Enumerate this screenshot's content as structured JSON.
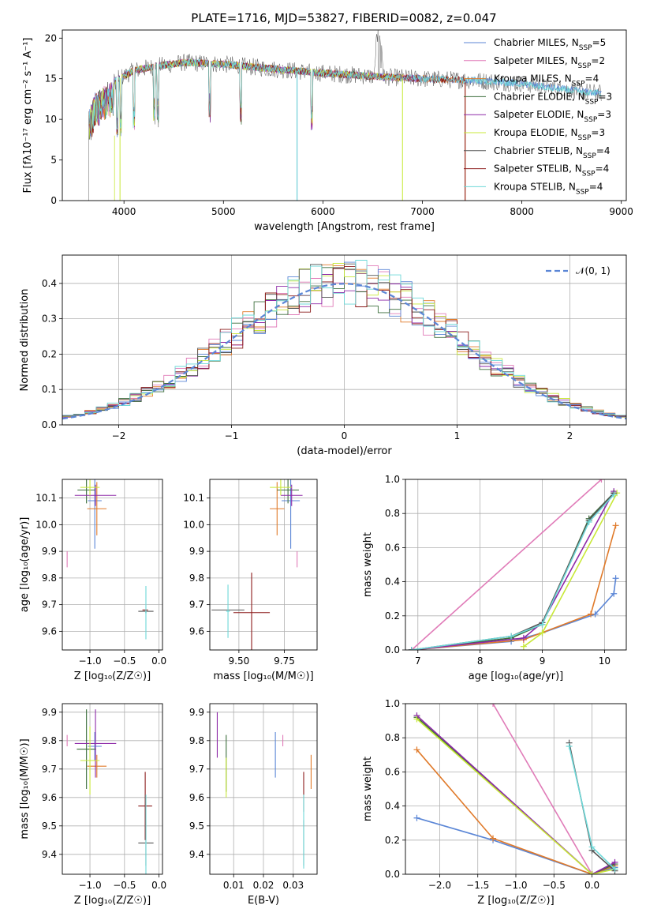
{
  "colors": {
    "Chabrier MILES": "#5b86d6",
    "Salpeter MILES": "#e07bb8",
    "Kroupa MILES": "#e07a2a",
    "Chabrier ELODIE": "#3c6e3c",
    "Salpeter ELODIE": "#8e2aa8",
    "Kroupa ELODIE": "#c8e838",
    "Chabrier STELIB": "#555555",
    "Salpeter STELIB": "#8b1a1a",
    "Kroupa STELIB": "#6ed8d8",
    "gauss": "#5b86d6"
  },
  "chart_data": [
    {
      "id": "spectrum",
      "type": "line",
      "title": "PLATE=1716, MJD=53827, FIBERID=0082, z=0.047",
      "xlabel": "wavelength [Angstrom, rest frame]",
      "ylabel": "Flux [fλ10⁻¹⁷ erg cm⁻² s⁻¹ A⁻¹]",
      "xlim": [
        3380,
        9050
      ],
      "ylim": [
        0,
        21
      ],
      "xticks": [
        4000,
        5000,
        6000,
        7000,
        8000,
        9000
      ],
      "yticks": [
        0,
        5,
        10,
        15,
        20
      ],
      "grid": false,
      "legend_placement": "top-right",
      "legend": [
        {
          "model": "Chabrier MILES",
          "n": "5"
        },
        {
          "model": "Salpeter MILES",
          "n": "2"
        },
        {
          "model": "Kroupa MILES",
          "n": "4"
        },
        {
          "model": "Chabrier ELODIE",
          "n": "3"
        },
        {
          "model": "Salpeter ELODIE",
          "n": "3"
        },
        {
          "model": "Kroupa ELODIE",
          "n": "3"
        },
        {
          "model": "Chabrier STELIB",
          "n": "4"
        },
        {
          "model": "Salpeter STELIB",
          "n": "4"
        },
        {
          "model": "Kroupa STELIB",
          "n": "4"
        }
      ],
      "continuum": [
        [
          3650,
          11
        ],
        [
          3700,
          13
        ],
        [
          3800,
          14
        ],
        [
          3950,
          15
        ],
        [
          4100,
          16
        ],
        [
          4300,
          16.5
        ],
        [
          4600,
          17
        ],
        [
          5000,
          16.8
        ],
        [
          5500,
          16.2
        ],
        [
          6000,
          15.7
        ],
        [
          6500,
          15.3
        ],
        [
          7000,
          15.0
        ],
        [
          7500,
          14.8
        ],
        [
          8000,
          14.4
        ],
        [
          8500,
          13.6
        ],
        [
          8800,
          13.2
        ]
      ]
    },
    {
      "id": "residuals",
      "type": "bar",
      "xlabel": "(data-model)/error",
      "ylabel": "Normed distribution",
      "xlim": [
        -2.5,
        2.5
      ],
      "ylim": [
        0,
        0.48
      ],
      "xticks": [
        -2,
        -1,
        0,
        1,
        2
      ],
      "yticks": [
        0.0,
        0.1,
        0.2,
        0.3,
        0.4
      ],
      "grid": true,
      "legend_placement": "top-right",
      "legend": [
        {
          "label": "𝒩(0, 1)"
        }
      ]
    },
    {
      "id": "age-vs-z",
      "type": "scatter",
      "xlabel": "Z [log₁₀(Z/Z☉)]",
      "ylabel": "age  [log₁₀(age/yr)]",
      "xlim": [
        -1.4,
        0.05
      ],
      "ylim": [
        9.53,
        10.17
      ],
      "xticks": [
        -1.0,
        -0.5,
        0.0
      ],
      "yticks": [
        9.6,
        9.7,
        9.8,
        9.9,
        10.0,
        10.1
      ],
      "grid": true,
      "points": [
        {
          "s": "Chabrier MILES",
          "x": -0.93,
          "y": 10.09,
          "xe": 0.1,
          "ye": 0.18
        },
        {
          "s": "Salpeter MILES",
          "x": -1.33,
          "y": 9.87,
          "xe": 0.0,
          "ye": 0.03
        },
        {
          "s": "Kroupa MILES",
          "x": -0.9,
          "y": 10.06,
          "xe": 0.14,
          "ye": 0.1
        },
        {
          "s": "Chabrier ELODIE",
          "x": -1.05,
          "y": 10.13,
          "xe": 0.13,
          "ye": 0.05
        },
        {
          "s": "Salpeter ELODIE",
          "x": -0.92,
          "y": 10.11,
          "xe": 0.3,
          "ye": 0.04
        },
        {
          "s": "Kroupa ELODIE",
          "x": -1.0,
          "y": 10.14,
          "xe": 0.14,
          "ye": 0.03
        },
        {
          "s": "Chabrier STELIB",
          "x": -0.19,
          "y": 9.675,
          "xe": 0.11,
          "ye": 0.0
        },
        {
          "s": "Salpeter STELIB",
          "x": -0.2,
          "y": 9.68,
          "xe": 0.04,
          "ye": 0.0
        },
        {
          "s": "Kroupa STELIB",
          "x": -0.19,
          "y": 9.67,
          "xe": 0.01,
          "ye": 0.1
        }
      ]
    },
    {
      "id": "age-vs-mass",
      "type": "scatter",
      "xlabel": "mass [log₁₀(M/M☉)]",
      "ylabel": "",
      "xlim": [
        9.34,
        9.93
      ],
      "ylim": [
        9.53,
        10.17
      ],
      "xticks": [
        9.5,
        9.75
      ],
      "yticks": [
        9.6,
        9.7,
        9.8,
        9.9,
        10.0,
        10.1
      ],
      "grid": true,
      "points": [
        {
          "s": "Chabrier MILES",
          "x": 9.785,
          "y": 10.09,
          "xe": 0.05,
          "ye": 0.18
        },
        {
          "s": "Salpeter MILES",
          "x": 9.82,
          "y": 9.87,
          "xe": 0.0,
          "ye": 0.03
        },
        {
          "s": "Kroupa MILES",
          "x": 9.71,
          "y": 10.06,
          "xe": 0.04,
          "ye": 0.1
        },
        {
          "s": "Chabrier ELODIE",
          "x": 9.77,
          "y": 10.13,
          "xe": 0.06,
          "ye": 0.05
        },
        {
          "s": "Salpeter ELODIE",
          "x": 9.79,
          "y": 10.11,
          "xe": 0.06,
          "ye": 0.04
        },
        {
          "s": "Kroupa ELODIE",
          "x": 9.73,
          "y": 10.14,
          "xe": 0.06,
          "ye": 0.03
        },
        {
          "s": "Chabrier STELIB",
          "x": 9.44,
          "y": 9.68,
          "xe": 0.09,
          "ye": 0.0
        },
        {
          "s": "Salpeter STELIB",
          "x": 9.57,
          "y": 9.67,
          "xe": 0.1,
          "ye": 0.15
        },
        {
          "s": "Kroupa STELIB",
          "x": 9.44,
          "y": 9.675,
          "xe": 0.01,
          "ye": 0.1
        }
      ]
    },
    {
      "id": "weight-vs-age",
      "type": "line",
      "xlabel": "age  [log₁₀(age/yr)]",
      "ylabel": "mass weight",
      "xlim": [
        6.8,
        10.35
      ],
      "ylim": [
        0,
        1
      ],
      "xticks": [
        7,
        8,
        9,
        10
      ],
      "yticks": [
        0.0,
        0.2,
        0.4,
        0.6,
        0.8,
        1.0
      ],
      "grid": true,
      "series": [
        {
          "s": "Chabrier MILES",
          "x": [
            6.9,
            8.5,
            9.0,
            9.85,
            10.15,
            10.18
          ],
          "y": [
            0.0,
            0.05,
            0.1,
            0.21,
            0.33,
            0.42
          ]
        },
        {
          "s": "Salpeter MILES",
          "x": [
            6.9,
            9.95
          ],
          "y": [
            0.0,
            1.0
          ]
        },
        {
          "s": "Kroupa MILES",
          "x": [
            6.9,
            8.7,
            9.78,
            10.18
          ],
          "y": [
            0.0,
            0.06,
            0.21,
            0.73
          ]
        },
        {
          "s": "Chabrier ELODIE",
          "x": [
            6.9,
            8.5,
            9.0,
            9.75,
            10.15
          ],
          "y": [
            0.0,
            0.07,
            0.15,
            0.77,
            0.92
          ]
        },
        {
          "s": "Salpeter ELODIE",
          "x": [
            6.9,
            8.7,
            9.0,
            10.15
          ],
          "y": [
            0.0,
            0.07,
            0.16,
            0.93
          ]
        },
        {
          "s": "Kroupa ELODIE",
          "x": [
            8.7,
            9.0,
            10.2
          ],
          "y": [
            0.02,
            0.1,
            0.92
          ]
        },
        {
          "s": "Chabrier STELIB",
          "x": [
            6.9,
            8.5,
            9.0,
            9.75,
            10.15
          ],
          "y": [
            0.0,
            0.08,
            0.16,
            0.76,
            0.92
          ]
        },
        {
          "s": "Kroupa STELIB",
          "x": [
            6.9,
            8.5,
            9.0,
            9.75,
            10.15
          ],
          "y": [
            0.0,
            0.08,
            0.15,
            0.75,
            0.91
          ]
        }
      ]
    },
    {
      "id": "mass-vs-z",
      "type": "scatter",
      "xlabel": "Z [log₁₀(Z/Z☉)]",
      "ylabel": "mass [log₁₀(M/M☉)]",
      "xlim": [
        -1.4,
        0.05
      ],
      "ylim": [
        9.33,
        9.93
      ],
      "xticks": [
        -1.0,
        -0.5,
        0.0
      ],
      "yticks": [
        9.4,
        9.5,
        9.6,
        9.7,
        9.8,
        9.9
      ],
      "grid": true,
      "points": [
        {
          "s": "Chabrier MILES",
          "x": -0.93,
          "y": 9.78,
          "xe": 0.1,
          "ye": 0.05
        },
        {
          "s": "Salpeter MILES",
          "x": -1.33,
          "y": 9.8,
          "xe": 0.0,
          "ye": 0.02
        },
        {
          "s": "Kroupa MILES",
          "x": -0.9,
          "y": 9.71,
          "xe": 0.14,
          "ye": 0.04
        },
        {
          "s": "Chabrier ELODIE",
          "x": -1.05,
          "y": 9.77,
          "xe": 0.14,
          "ye": 0.14
        },
        {
          "s": "Salpeter ELODIE",
          "x": -0.92,
          "y": 9.79,
          "xe": 0.3,
          "ye": 0.12
        },
        {
          "s": "Kroupa ELODIE",
          "x": -1.0,
          "y": 9.73,
          "xe": 0.14,
          "ye": 0.12
        },
        {
          "s": "Chabrier STELIB",
          "x": -0.19,
          "y": 9.44,
          "xe": 0.11,
          "ye": 0.08
        },
        {
          "s": "Salpeter STELIB",
          "x": -0.2,
          "y": 9.57,
          "xe": 0.1,
          "ye": 0.12
        },
        {
          "s": "Kroupa STELIB",
          "x": -0.19,
          "y": 9.44,
          "xe": 0.01,
          "ye": 0.17
        }
      ]
    },
    {
      "id": "mass-vs-ebv",
      "type": "scatter",
      "xlabel": "E(B-V)",
      "ylabel": "",
      "xlim": [
        0.002,
        0.038
      ],
      "ylim": [
        9.33,
        9.93
      ],
      "xticks": [
        0.01,
        0.02,
        0.03
      ],
      "yticks": [
        9.4,
        9.5,
        9.6,
        9.7,
        9.8,
        9.9
      ],
      "grid": true,
      "points": [
        {
          "s": "Chabrier MILES",
          "x": 0.024,
          "y": 9.75,
          "xe": 0.0,
          "ye": 0.08
        },
        {
          "s": "Salpeter MILES",
          "x": 0.0265,
          "y": 9.8,
          "xe": 0.0,
          "ye": 0.02
        },
        {
          "s": "Kroupa MILES",
          "x": 0.036,
          "y": 9.69,
          "xe": 0.0,
          "ye": 0.06
        },
        {
          "s": "Chabrier ELODIE",
          "x": 0.0075,
          "y": 9.72,
          "xe": 0.0,
          "ye": 0.1
        },
        {
          "s": "Salpeter ELODIE",
          "x": 0.0045,
          "y": 9.82,
          "xe": 0.0,
          "ye": 0.08
        },
        {
          "s": "Kroupa ELODIE",
          "x": 0.0075,
          "y": 9.67,
          "xe": 0.0,
          "ye": 0.07
        },
        {
          "s": "Chabrier STELIB",
          "x": 0.0335,
          "y": 9.44,
          "xe": 0.0,
          "ye": 0.08
        },
        {
          "s": "Salpeter STELIB",
          "x": 0.0335,
          "y": 9.62,
          "xe": 0.0,
          "ye": 0.07
        },
        {
          "s": "Kroupa STELIB",
          "x": 0.0335,
          "y": 9.48,
          "xe": 0.0,
          "ye": 0.13
        }
      ]
    },
    {
      "id": "weight-vs-z",
      "type": "line",
      "xlabel": "Z [log₁₀(Z/Z☉)]",
      "ylabel": "mass weight",
      "xlim": [
        -2.45,
        0.45
      ],
      "ylim": [
        0,
        1
      ],
      "xticks": [
        -2.0,
        -1.5,
        -1.0,
        -0.5,
        0.0
      ],
      "yticks": [
        0.0,
        0.2,
        0.4,
        0.6,
        0.8,
        1.0
      ],
      "grid": true,
      "series": [
        {
          "s": "Chabrier MILES",
          "x": [
            -2.3,
            -1.3,
            0.0,
            0.3
          ],
          "y": [
            0.33,
            0.2,
            0.0,
            0.04
          ]
        },
        {
          "s": "Salpeter MILES",
          "x": [
            -1.3,
            0.0
          ],
          "y": [
            1.0,
            0.0
          ]
        },
        {
          "s": "Kroupa MILES",
          "x": [
            -2.3,
            -1.3,
            0.0,
            0.3
          ],
          "y": [
            0.73,
            0.21,
            0.0,
            0.05
          ]
        },
        {
          "s": "Chabrier ELODIE",
          "x": [
            -2.3,
            0.0,
            0.3
          ],
          "y": [
            0.92,
            0.0,
            0.06
          ]
        },
        {
          "s": "Salpeter ELODIE",
          "x": [
            -2.3,
            0.0,
            0.3
          ],
          "y": [
            0.93,
            0.0,
            0.07
          ]
        },
        {
          "s": "Kroupa ELODIE",
          "x": [
            -2.3,
            0.0,
            0.3
          ],
          "y": [
            0.91,
            0.0,
            0.03
          ]
        },
        {
          "s": "Chabrier STELIB",
          "x": [
            -0.3,
            0.0,
            0.3
          ],
          "y": [
            0.77,
            0.14,
            0.02
          ]
        },
        {
          "s": "Kroupa STELIB",
          "x": [
            -0.3,
            0.0,
            0.3
          ],
          "y": [
            0.75,
            0.16,
            0.03
          ]
        }
      ]
    }
  ]
}
